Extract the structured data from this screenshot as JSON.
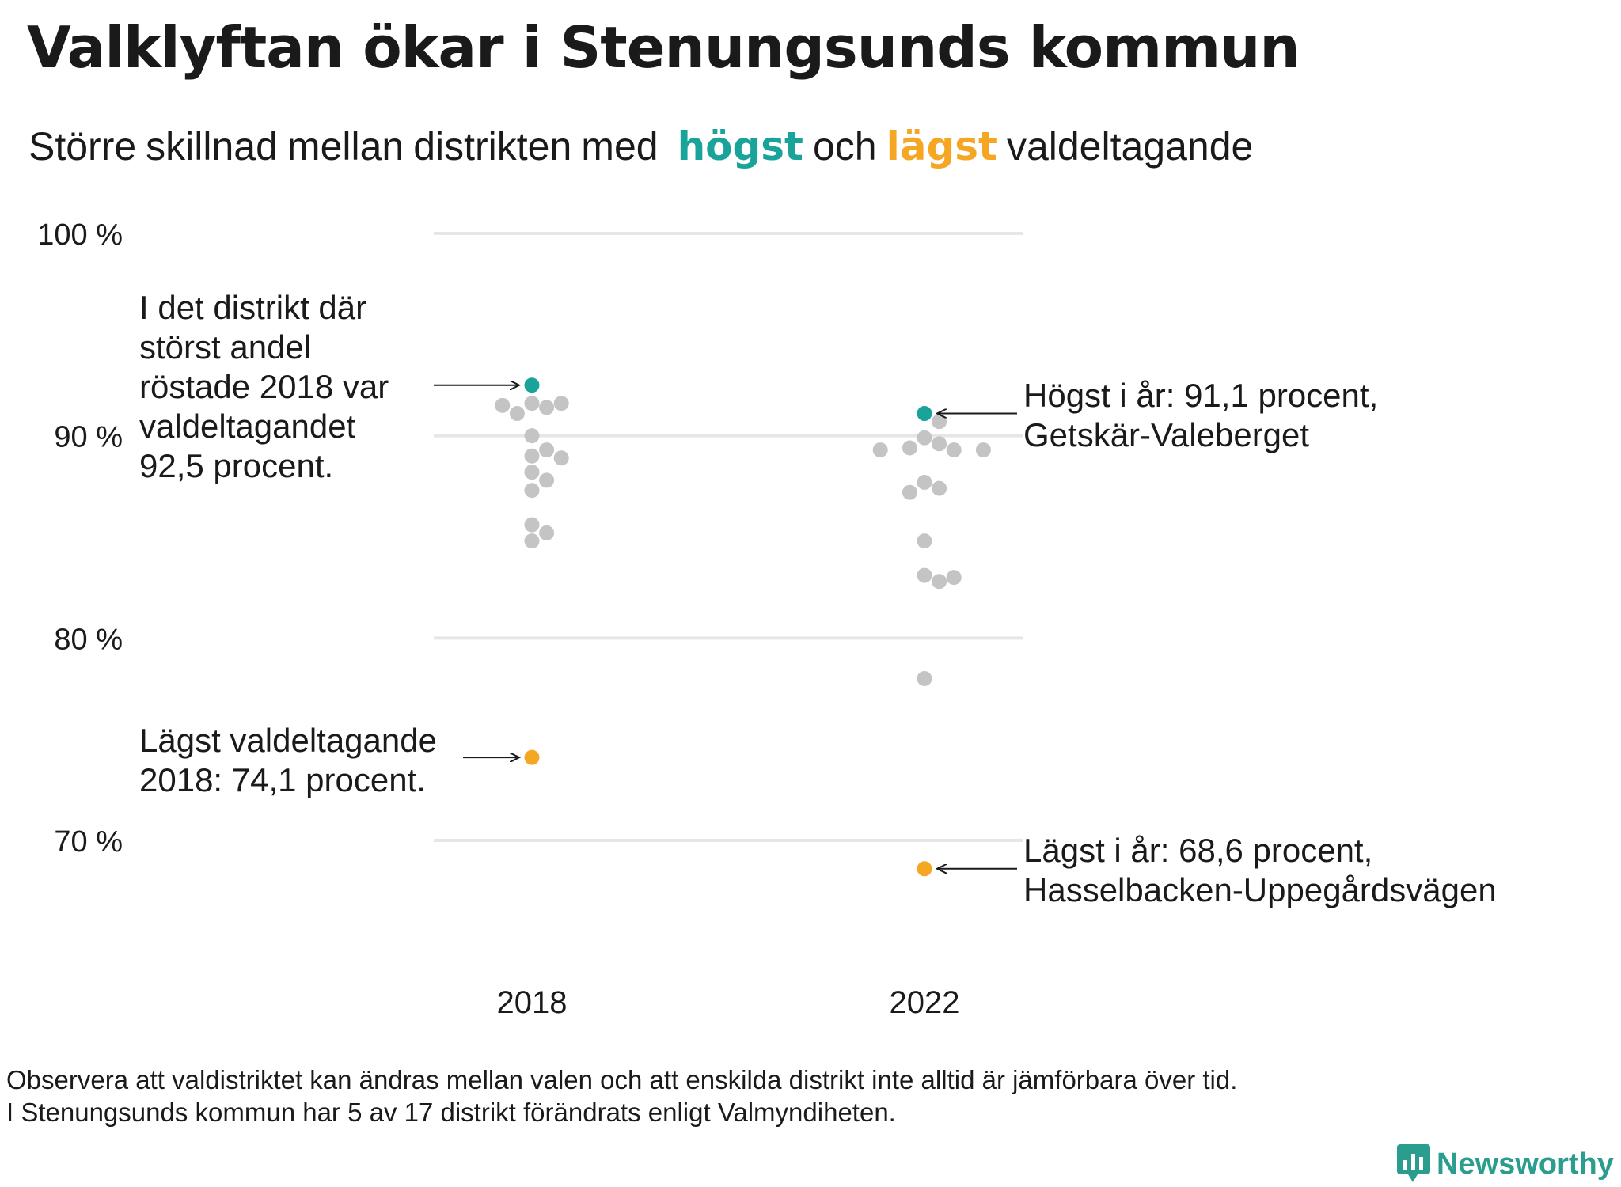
{
  "title": "Valklyftan ökar i Stenungsunds kommun",
  "subtitle": {
    "words_before": [
      "Större",
      "skillnad",
      "mellan",
      "distrikten",
      "med"
    ],
    "highest_word": "högst",
    "middle_word": "och",
    "lowest_word": "lägst",
    "words_after": [
      "valdeltagande"
    ]
  },
  "colors": {
    "highest": "#1aa39a",
    "lowest": "#f5a623",
    "other": "#c4c4c4",
    "grid": "#e6e6e6"
  },
  "chart_data": {
    "type": "scatter",
    "categories": [
      "2018",
      "2022"
    ],
    "ylim": [
      66,
      100
    ],
    "yticks": [
      {
        "value": 100,
        "label": "100 %"
      },
      {
        "value": 90,
        "label": "90 %"
      },
      {
        "value": 80,
        "label": "80 %"
      },
      {
        "value": 70,
        "label": "70 %"
      }
    ],
    "series": [
      {
        "category": "2018",
        "highest": 92.5,
        "lowest": 74.1,
        "others": [
          91.6,
          91.6,
          91.5,
          91.4,
          91.1,
          90.0,
          89.3,
          89.0,
          88.9,
          88.2,
          87.8,
          87.3,
          85.6,
          85.2,
          84.8
        ]
      },
      {
        "category": "2022",
        "highest": 91.1,
        "lowest": 68.6,
        "others": [
          90.7,
          89.9,
          89.6,
          89.4,
          89.3,
          89.3,
          89.3,
          87.7,
          87.4,
          87.2,
          84.8,
          83.1,
          83.0,
          82.8,
          78.0
        ]
      }
    ],
    "annotations": [
      {
        "id": "high-2018",
        "lines": [
          "I det distrikt där",
          "störst andel",
          "röstade 2018 var",
          "valdeltagandet",
          "92,5 procent."
        ]
      },
      {
        "id": "low-2018",
        "lines": [
          "Lägst valdeltagande",
          "2018: 74,1 procent."
        ]
      },
      {
        "id": "high-2022",
        "lines": [
          "Högst i år: 91,1 procent,",
          "Getskär-Valeberget"
        ]
      },
      {
        "id": "low-2022",
        "lines": [
          "Lägst i år: 68,6 procent,",
          "Hasselbacken-Uppegårdsvägen"
        ]
      }
    ]
  },
  "footnote": {
    "line1": "Observera att valdistriktet kan ändras mellan valen och att enskilda distrikt inte alltid är jämförbara över tid.",
    "line2": "I Stenungsunds kommun har 5 av 17 distrikt förändrats enligt Valmyndiheten."
  },
  "brand": {
    "name": "Newsworthy",
    "icon": "bar-chart-speech-bubble-icon"
  }
}
